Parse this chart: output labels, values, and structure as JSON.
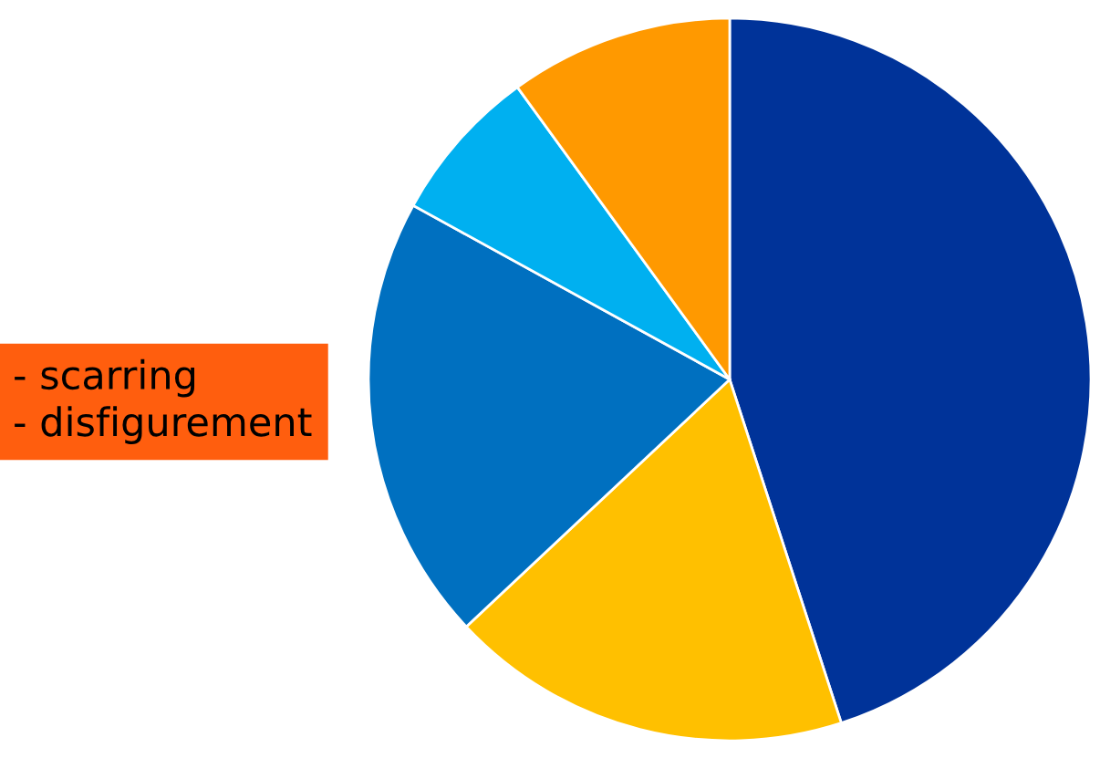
{
  "chart_data": {
    "type": "pie",
    "categories": [
      null,
      null,
      null,
      null,
      null
    ],
    "values": [
      45,
      18,
      20,
      7,
      10
    ],
    "colors": [
      "#003399",
      "#ffc000",
      "#0070c0",
      "#00b0f0",
      "#ff9900"
    ],
    "annotations": [
      "- scarring\n- disfigurement"
    ]
  }
}
